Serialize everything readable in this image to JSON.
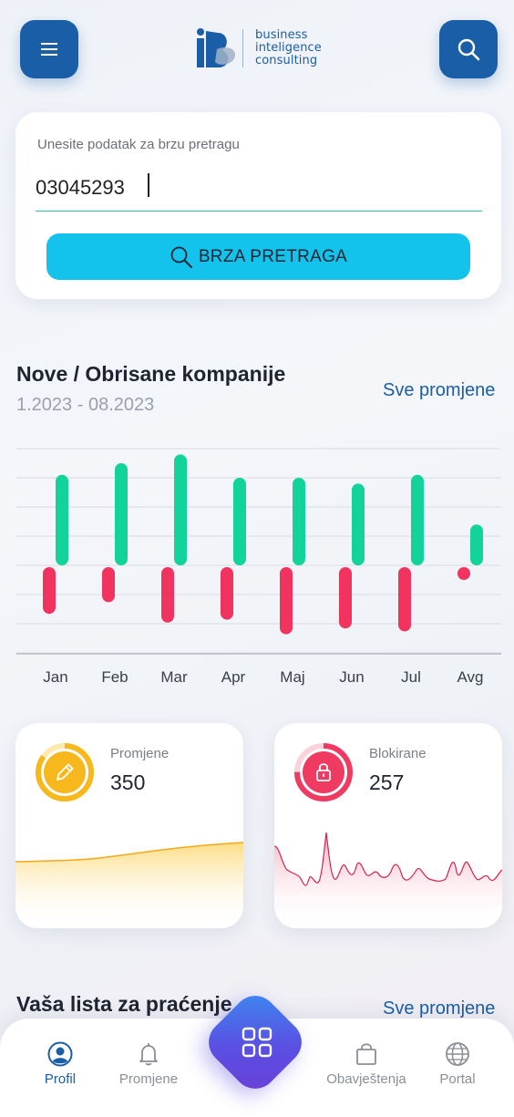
{
  "header": {
    "menu_icon": "hamburger-icon",
    "search_icon": "search-icon",
    "logo_lines": [
      "business",
      "inteligence",
      "consulting"
    ]
  },
  "search": {
    "label": "Unesite podatak za brzu pretragu",
    "value": "03045293",
    "button_label": "BRZA PRETRAGA"
  },
  "chart_section": {
    "title": "Nove / Obrisane kompanije",
    "subtitle": "1.2023 - 08.2023",
    "link": "Sve promjene"
  },
  "chart_data": {
    "type": "bar",
    "categories": [
      "Jan",
      "Feb",
      "Mar",
      "Apr",
      "Maj",
      "Jun",
      "Jul",
      "Avg"
    ],
    "series": [
      {
        "values": [
          3.1,
          3.5,
          3.8,
          3.0,
          3.0,
          2.8,
          3.1,
          1.4
        ],
        "color": "#12d39a"
      },
      {
        "values": [
          -1.6,
          -1.2,
          -1.9,
          -1.8,
          -2.3,
          -2.1,
          -2.2,
          -0.3
        ],
        "color": "#f0335f"
      }
    ],
    "ylim": [
      -3,
      4
    ],
    "grid": true,
    "legend": "none"
  },
  "stats": {
    "promjene": {
      "label": "Promjene",
      "value": "350",
      "icon": "pencil-icon",
      "color": "#f6b81c",
      "progress": 0.85
    },
    "blokirane": {
      "label": "Blokirane",
      "value": "257",
      "icon": "lock-icon",
      "color": "#ef3a62",
      "progress": 0.75
    }
  },
  "watchlist": {
    "title": "Vaša lista za praćenje",
    "link": "Sve promjene"
  },
  "nav": {
    "items": [
      {
        "label": "Profil",
        "icon": "user-circle-icon",
        "active": true
      },
      {
        "label": "Promjene",
        "icon": "bell-icon",
        "active": false
      },
      {
        "label": "Obavještenja",
        "icon": "shopping-bag-icon",
        "active": false
      },
      {
        "label": "Portal",
        "icon": "globe-icon",
        "active": false
      }
    ],
    "center_icon": "grid-icon"
  }
}
